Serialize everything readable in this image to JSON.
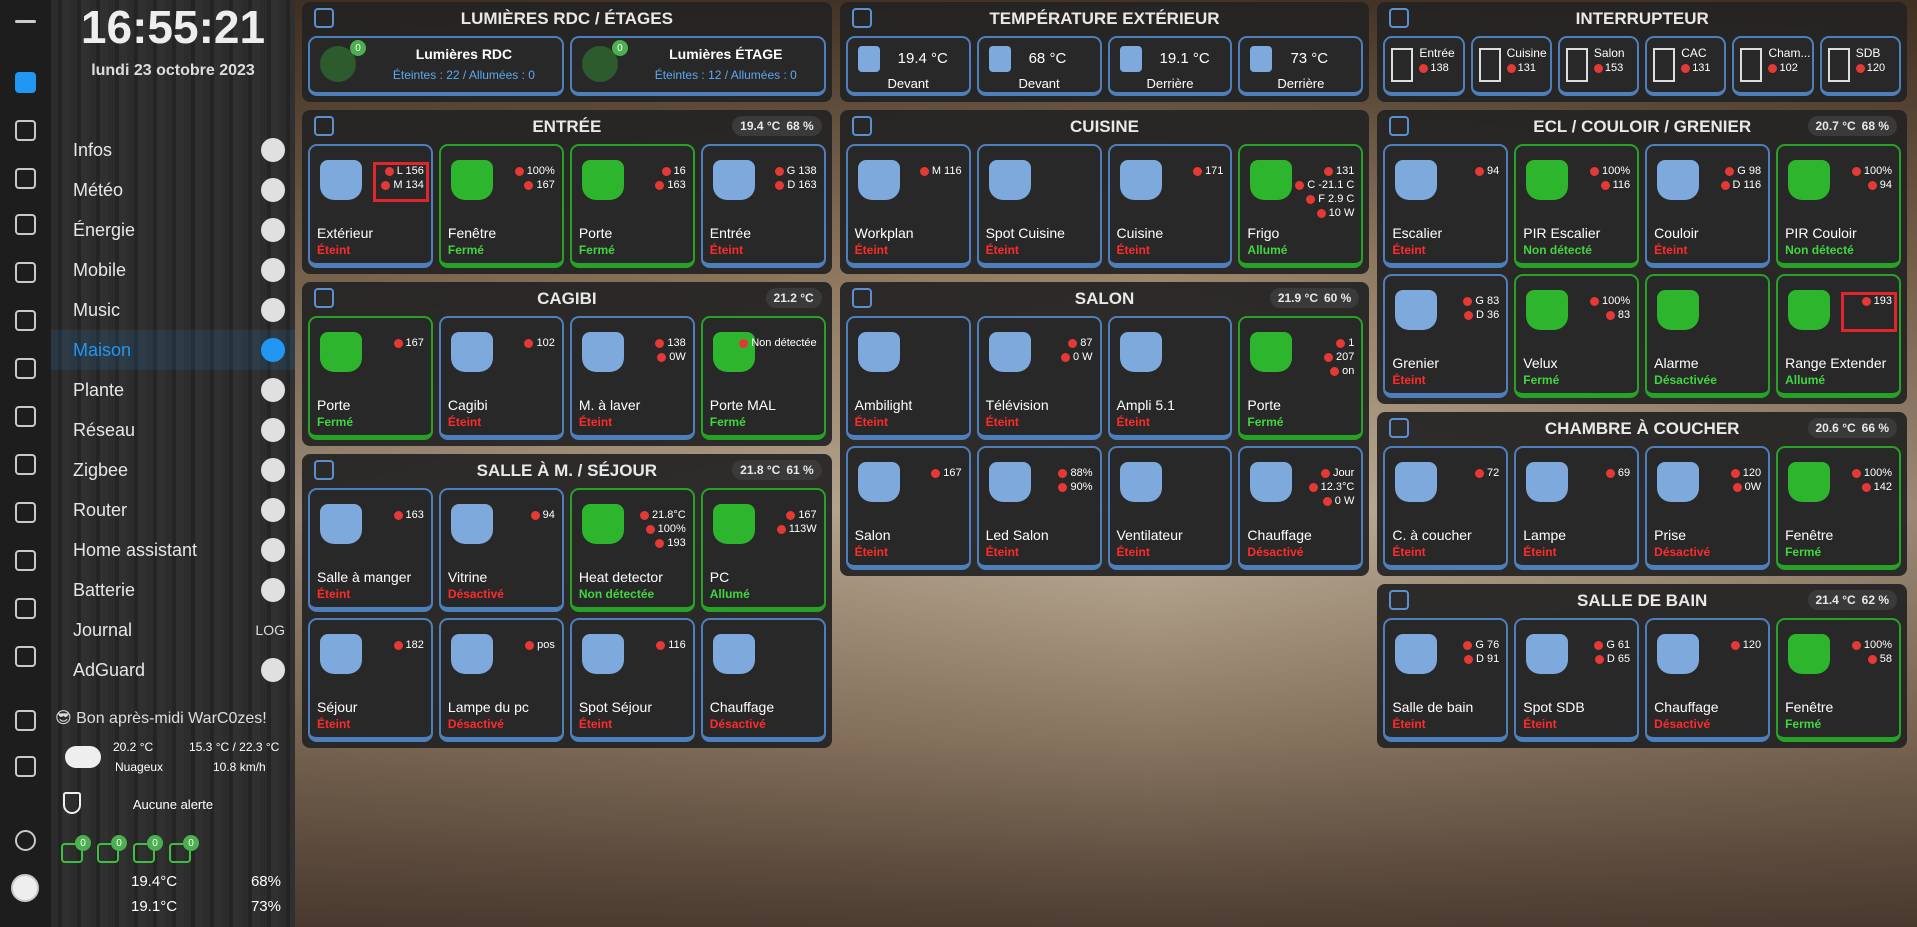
{
  "sidebar": {
    "clock": "16:55:21",
    "date": "lundi 23 octobre 2023",
    "menu": [
      {
        "label": "Infos"
      },
      {
        "label": "Météo"
      },
      {
        "label": "Énergie"
      },
      {
        "label": "Mobile"
      },
      {
        "label": "Music"
      },
      {
        "label": "Maison",
        "active": true
      },
      {
        "label": "Plante"
      },
      {
        "label": "Réseau"
      },
      {
        "label": "Zigbee"
      },
      {
        "label": "Router"
      },
      {
        "label": "Home assistant"
      },
      {
        "label": "Batterie"
      },
      {
        "label": "Journal",
        "icon_text": "LOG"
      },
      {
        "label": "AdGuard"
      }
    ],
    "greeting": "Bon après-midi WarC0zes!",
    "weather": {
      "temp": "20.2 °C",
      "range": "15.3 °C / 22.3 °C",
      "condition": "Nuageux",
      "wind": "10.8 km/h"
    },
    "alert": "Aucune alerte",
    "badges": [
      "0",
      "0",
      "0",
      "0"
    ],
    "indoor": [
      {
        "temp": "19.4°C",
        "hum": "68%"
      },
      {
        "temp": "19.1°C",
        "hum": "73%"
      }
    ]
  },
  "columns": [
    [
      {
        "title": "LUMIÈRES RDC / ÉTAGES",
        "kind": "lights",
        "items": [
          {
            "title": "Lumières RDC",
            "sub": "Éteintes : 22 / Allumées : 0",
            "badge": "0"
          },
          {
            "title": "Lumières ÉTAGE",
            "sub": "Éteintes : 12 / Allumées : 0",
            "badge": "0"
          }
        ]
      },
      {
        "title": "ENTRÉE",
        "temp": "19.4 °C",
        "hum": "68 %",
        "cards": [
          {
            "name": "Extérieur",
            "state": "Éteint",
            "color": "red",
            "info": [
              "L 156",
              "M 134"
            ],
            "highlight": true
          },
          {
            "name": "Fenêtre",
            "state": "Fermé",
            "color": "green",
            "info": [
              "100%",
              "167"
            ]
          },
          {
            "name": "Porte",
            "state": "Fermé",
            "color": "green",
            "info": [
              "16",
              "163"
            ]
          },
          {
            "name": "Entrée",
            "state": "Éteint",
            "color": "red",
            "info": [
              "G 138",
              "D 163"
            ]
          }
        ]
      },
      {
        "title": "CAGIBI",
        "temp": "21.2 °C",
        "cards": [
          {
            "name": "Porte",
            "state": "Fermé",
            "color": "green",
            "info": [
              "167"
            ]
          },
          {
            "name": "Cagibi",
            "state": "Éteint",
            "color": "red",
            "info": [
              "102"
            ]
          },
          {
            "name": "M. à laver",
            "state": "Éteint",
            "color": "red",
            "info": [
              "138",
              "0W"
            ]
          },
          {
            "name": "Porte MAL",
            "state": "Fermé",
            "color": "green",
            "info": [
              "Non détectée"
            ]
          }
        ]
      },
      {
        "title": "SALLE À M. / SÉJOUR",
        "temp": "21.8 °C",
        "hum": "61 %",
        "cards": [
          {
            "name": "Salle à manger",
            "state": "Éteint",
            "color": "red",
            "info": [
              "163"
            ]
          },
          {
            "name": "Vitrine",
            "state": "Désactivé",
            "color": "red",
            "info": [
              "94"
            ]
          },
          {
            "name": "Heat detector",
            "state": "Non détectée",
            "color": "green",
            "info": [
              "21.8°C",
              "100%",
              "193"
            ]
          },
          {
            "name": "PC",
            "state": "Allumé",
            "color": "green",
            "info": [
              "167",
              "113W"
            ]
          },
          {
            "name": "Séjour",
            "state": "Éteint",
            "color": "red",
            "info": [
              "182"
            ]
          },
          {
            "name": "Lampe du pc",
            "state": "Désactivé",
            "color": "red",
            "info": [
              "pos"
            ]
          },
          {
            "name": "Spot Séjour",
            "state": "Éteint",
            "color": "red",
            "info": [
              "116"
            ]
          },
          {
            "name": "Chauffage",
            "state": "Désactivé",
            "color": "red",
            "info": []
          }
        ]
      }
    ],
    [
      {
        "title": "TEMPÉRATURE EXTÉRIEUR",
        "kind": "sensors",
        "items": [
          {
            "value": "19.4 °C",
            "label": "Devant"
          },
          {
            "value": "68 °C",
            "label": "Devant"
          },
          {
            "value": "19.1 °C",
            "label": "Derrière"
          },
          {
            "value": "73 °C",
            "label": "Derrière"
          }
        ]
      },
      {
        "title": "CUISINE",
        "cards": [
          {
            "name": "Workplan",
            "state": "Éteint",
            "color": "red",
            "info": [
              "M 116"
            ]
          },
          {
            "name": "Spot Cuisine",
            "state": "Éteint",
            "color": "red",
            "info": []
          },
          {
            "name": "Cuisine",
            "state": "Éteint",
            "color": "red",
            "info": [
              "171"
            ]
          },
          {
            "name": "Frigo",
            "state": "Allumé",
            "color": "green",
            "info": [
              "131",
              "C -21.1 C",
              "F 2.9 C",
              "10 W"
            ]
          }
        ]
      },
      {
        "title": "SALON",
        "temp": "21.9 °C",
        "hum": "60 %",
        "cards": [
          {
            "name": "Ambilight",
            "state": "Éteint",
            "color": "red",
            "info": []
          },
          {
            "name": "Télévision",
            "state": "Éteint",
            "color": "red",
            "info": [
              "87",
              "0 W"
            ]
          },
          {
            "name": "Ampli 5.1",
            "state": "Éteint",
            "color": "red",
            "info": []
          },
          {
            "name": "Porte",
            "state": "Fermé",
            "color": "green",
            "info": [
              "1",
              "207",
              "on"
            ]
          },
          {
            "name": "Salon",
            "state": "Éteint",
            "color": "red",
            "info": [
              "167"
            ]
          },
          {
            "name": "Led Salon",
            "state": "Éteint",
            "color": "red",
            "info": [
              "88%",
              "90%"
            ]
          },
          {
            "name": "Ventilateur",
            "state": "Éteint",
            "color": "red",
            "info": []
          },
          {
            "name": "Chauffage",
            "state": "Désactivé",
            "color": "red",
            "info": [
              "Jour",
              "12.3°C",
              "0 W"
            ]
          }
        ]
      }
    ],
    [
      {
        "title": "INTERRUPTEUR",
        "kind": "switches",
        "items": [
          {
            "name": "Entrée",
            "count": "138"
          },
          {
            "name": "Cuisine",
            "count": "131"
          },
          {
            "name": "Salon",
            "count": "153"
          },
          {
            "name": "CAC",
            "count": "131"
          },
          {
            "name": "Cham...",
            "count": "102"
          },
          {
            "name": "SDB",
            "count": "120"
          }
        ]
      },
      {
        "title": "ECL / COULOIR / GRENIER",
        "temp": "20.7 °C",
        "hum": "68 %",
        "cards": [
          {
            "name": "Escalier",
            "state": "Éteint",
            "color": "red",
            "info": [
              "94"
            ]
          },
          {
            "name": "PIR Escalier",
            "state": "Non détecté",
            "color": "green",
            "info": [
              "100%",
              "116"
            ]
          },
          {
            "name": "Couloir",
            "state": "Éteint",
            "color": "red",
            "info": [
              "G 98",
              "D 116"
            ]
          },
          {
            "name": "PIR Couloir",
            "state": "Non détecté",
            "color": "green",
            "info": [
              "100%",
              "94"
            ]
          },
          {
            "name": "Grenier",
            "state": "Éteint",
            "color": "red",
            "info": [
              "G 83",
              "D 36"
            ]
          },
          {
            "name": "Velux",
            "state": "Fermé",
            "color": "green",
            "info": [
              "100%",
              "83"
            ]
          },
          {
            "name": "Alarme",
            "state": "Désactivée",
            "color": "green",
            "info": []
          },
          {
            "name": "Range Extender",
            "state": "Allumé",
            "color": "green",
            "info": [
              "193"
            ],
            "highlight": true
          }
        ]
      },
      {
        "title": "CHAMBRE À COUCHER",
        "temp": "20.6 °C",
        "hum": "66 %",
        "cards": [
          {
            "name": "C. à coucher",
            "state": "Éteint",
            "color": "red",
            "info": [
              "72"
            ]
          },
          {
            "name": "Lampe",
            "state": "Éteint",
            "color": "red",
            "info": [
              "69"
            ]
          },
          {
            "name": "Prise",
            "state": "Désactivé",
            "color": "red",
            "info": [
              "120",
              "0W"
            ]
          },
          {
            "name": "Fenêtre",
            "state": "Fermé",
            "color": "green",
            "info": [
              "100%",
              "142"
            ]
          }
        ]
      },
      {
        "title": "SALLE DE BAIN",
        "temp": "21.4 °C",
        "hum": "62 %",
        "cards": [
          {
            "name": "Salle de bain",
            "state": "Éteint",
            "color": "red",
            "info": [
              "G 76",
              "D 91"
            ]
          },
          {
            "name": "Spot SDB",
            "state": "Éteint",
            "color": "red",
            "info": [
              "G 61",
              "D 65"
            ]
          },
          {
            "name": "Chauffage",
            "state": "Désactivé",
            "color": "red",
            "info": [
              "120"
            ]
          },
          {
            "name": "Fenêtre",
            "state": "Fermé",
            "color": "green",
            "info": [
              "100%",
              "58"
            ]
          }
        ]
      }
    ]
  ]
}
